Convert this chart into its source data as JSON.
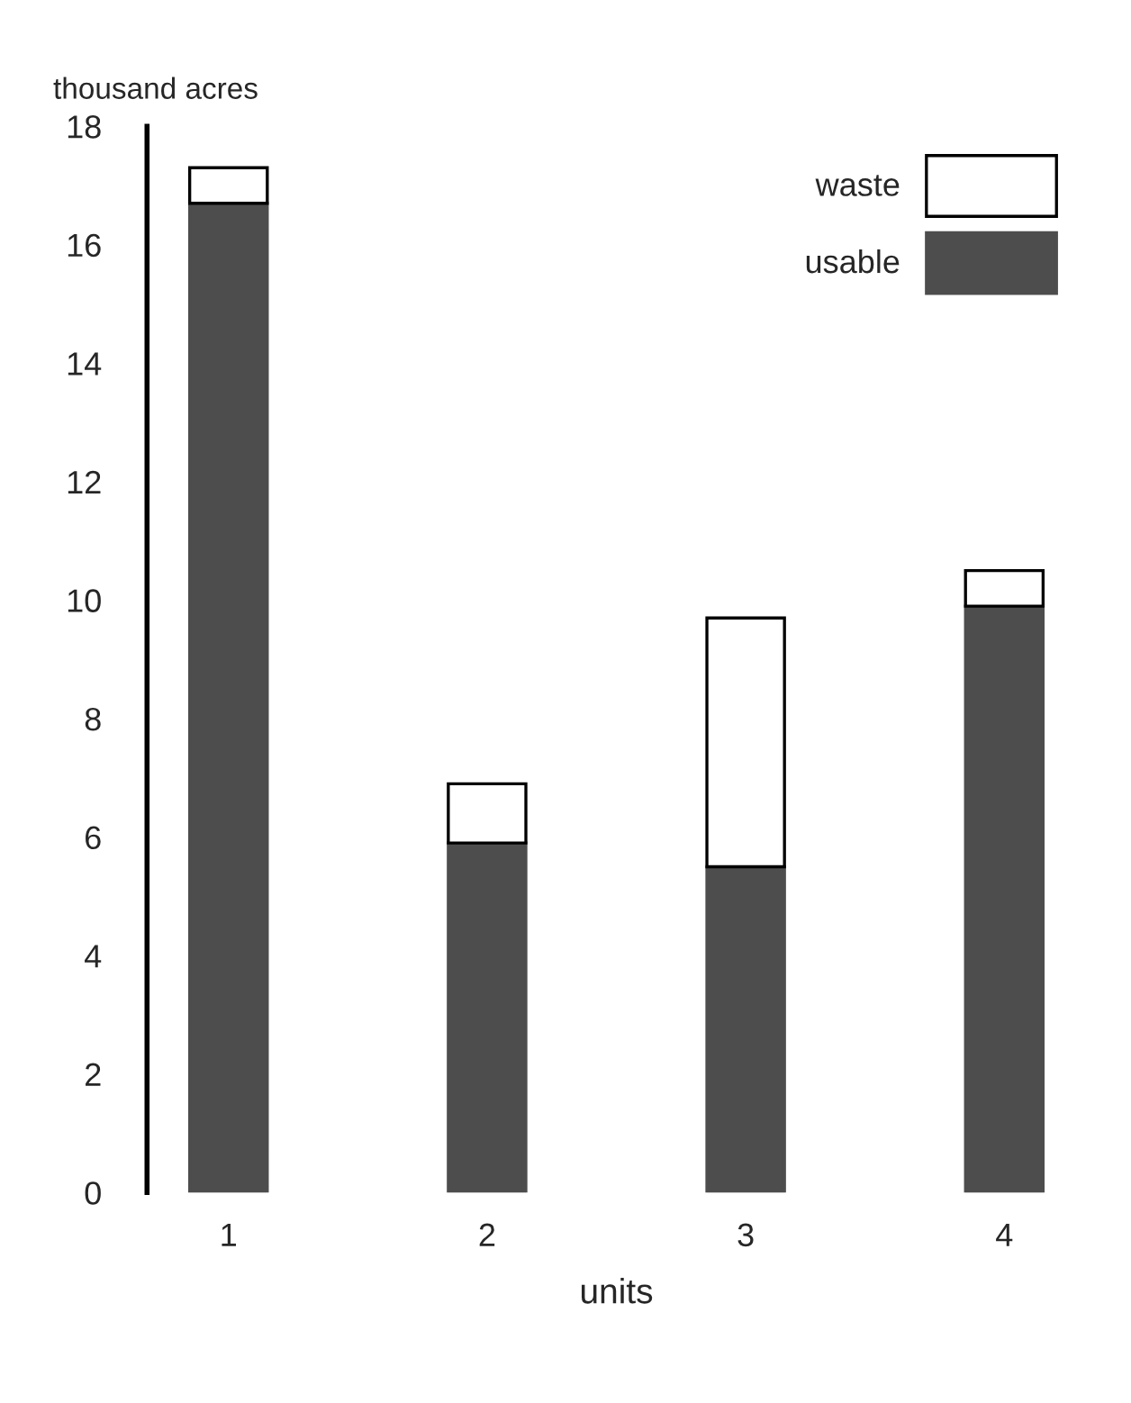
{
  "chart_data": {
    "type": "bar",
    "stacked": true,
    "xlabel": "units",
    "ylabel": "thousand acres",
    "categories": [
      "1",
      "2",
      "3",
      "4"
    ],
    "series": [
      {
        "name": "usable",
        "color": "#4d4d4d",
        "values": [
          16.7,
          5.9,
          5.5,
          9.9
        ]
      },
      {
        "name": "waste",
        "color": "#ffffff",
        "values": [
          0.6,
          1.0,
          4.2,
          0.6
        ]
      }
    ],
    "ylim": [
      0,
      18
    ],
    "yticks": [
      0,
      2,
      4,
      6,
      8,
      10,
      12,
      14,
      16,
      18
    ],
    "grid": false,
    "legend": "top right"
  }
}
